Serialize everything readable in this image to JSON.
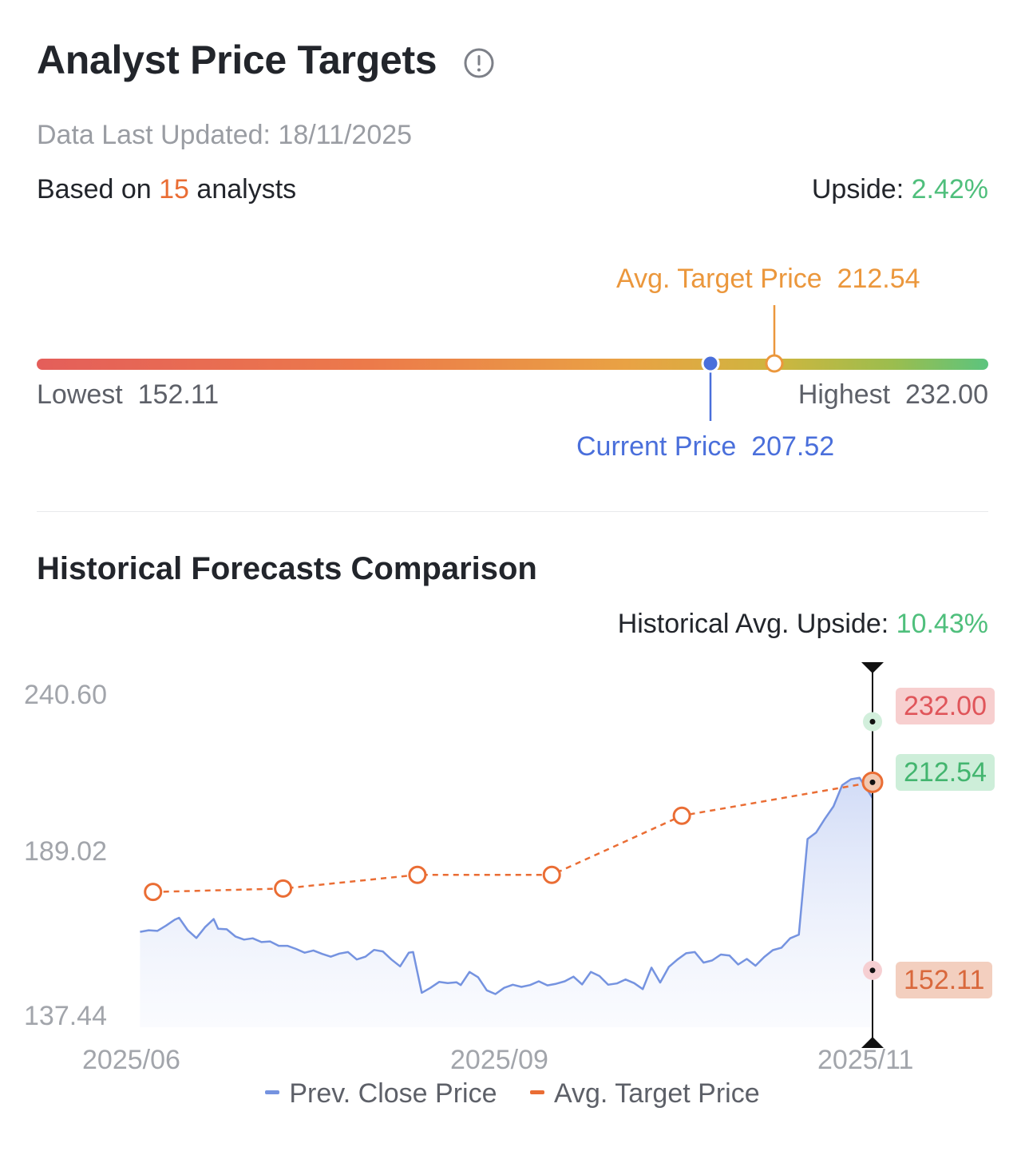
{
  "header": {
    "title": "Analyst Price Targets",
    "updated": "Data Last Updated: 18/11/2025",
    "based_prefix": "Based on",
    "analyst_count": "15",
    "based_suffix": "analysts",
    "upside_label": "Upside:",
    "upside_value": "2.42%"
  },
  "range": {
    "avg_label": "Avg. Target Price",
    "avg_value": "212.54",
    "current_label": "Current Price",
    "current_value": "207.52",
    "lowest_label": "Lowest",
    "lowest_value": "152.11",
    "highest_label": "Highest",
    "highest_value": "232.00"
  },
  "history": {
    "title": "Historical Forecasts Comparison",
    "avg_upside_label": "Historical Avg. Upside:",
    "avg_upside_value": "10.43%",
    "tag_high": "232.00",
    "tag_avg": "212.54",
    "tag_low": "152.11"
  },
  "legend": {
    "close": "Prev. Close Price",
    "target": "Avg. Target Price"
  },
  "colors": {
    "close": "#7593e0",
    "target": "#ea6d34",
    "high_tag": "#e0555a",
    "avg_tag": "#43b56f",
    "low_tag": "#d9683c"
  },
  "chart_data": {
    "type": "line",
    "y_ticks": [
      "240.60",
      "189.02",
      "137.44"
    ],
    "x_ticks": [
      "2025/06",
      "2025/09",
      "2025/11"
    ],
    "ylim": [
      137.44,
      240.6
    ],
    "series": [
      {
        "name": "Prev. Close Price",
        "points": [
          [
            "2025-06-02",
            164.5
          ],
          [
            "2025-06-04",
            165.0
          ],
          [
            "2025-06-06",
            164.8
          ],
          [
            "2025-06-08",
            166.5
          ],
          [
            "2025-06-10",
            168.4
          ],
          [
            "2025-06-11",
            169.0
          ],
          [
            "2025-06-13",
            165.0
          ],
          [
            "2025-06-15",
            162.5
          ],
          [
            "2025-06-17",
            166.0
          ],
          [
            "2025-06-19",
            168.6
          ],
          [
            "2025-06-20",
            165.5
          ],
          [
            "2025-06-22",
            165.3
          ],
          [
            "2025-06-24",
            163.0
          ],
          [
            "2025-06-26",
            162.0
          ],
          [
            "2025-06-28",
            162.4
          ],
          [
            "2025-06-30",
            161.2
          ],
          [
            "2025-07-02",
            161.4
          ],
          [
            "2025-07-04",
            160.0
          ],
          [
            "2025-07-06",
            160.0
          ],
          [
            "2025-07-08",
            159.0
          ],
          [
            "2025-07-10",
            157.8
          ],
          [
            "2025-07-12",
            158.5
          ],
          [
            "2025-07-14",
            157.4
          ],
          [
            "2025-07-16",
            156.5
          ],
          [
            "2025-07-18",
            157.5
          ],
          [
            "2025-07-20",
            158.0
          ],
          [
            "2025-07-22",
            155.6
          ],
          [
            "2025-07-24",
            156.5
          ],
          [
            "2025-07-26",
            158.7
          ],
          [
            "2025-07-28",
            158.2
          ],
          [
            "2025-07-30",
            155.6
          ],
          [
            "2025-08-01",
            153.4
          ],
          [
            "2025-08-03",
            157.8
          ],
          [
            "2025-08-04",
            158.0
          ],
          [
            "2025-08-06",
            144.9
          ],
          [
            "2025-08-08",
            146.5
          ],
          [
            "2025-08-10",
            148.4
          ],
          [
            "2025-08-12",
            148.0
          ],
          [
            "2025-08-14",
            148.3
          ],
          [
            "2025-08-15",
            147.4
          ],
          [
            "2025-08-17",
            151.6
          ],
          [
            "2025-08-19",
            149.9
          ],
          [
            "2025-08-21",
            145.7
          ],
          [
            "2025-08-23",
            144.5
          ],
          [
            "2025-08-25",
            146.5
          ],
          [
            "2025-08-27",
            147.5
          ],
          [
            "2025-08-29",
            146.8
          ],
          [
            "2025-08-31",
            147.4
          ],
          [
            "2025-09-02",
            148.6
          ],
          [
            "2025-09-04",
            147.3
          ],
          [
            "2025-09-06",
            147.8
          ],
          [
            "2025-09-08",
            148.6
          ],
          [
            "2025-09-10",
            150.1
          ],
          [
            "2025-09-12",
            147.6
          ],
          [
            "2025-09-14",
            151.6
          ],
          [
            "2025-09-16",
            150.3
          ],
          [
            "2025-09-18",
            147.5
          ],
          [
            "2025-09-20",
            147.9
          ],
          [
            "2025-09-22",
            149.2
          ],
          [
            "2025-09-24",
            148.0
          ],
          [
            "2025-09-26",
            146.1
          ],
          [
            "2025-09-28",
            153.0
          ],
          [
            "2025-09-30",
            148.2
          ],
          [
            "2025-10-02",
            153.2
          ],
          [
            "2025-10-04",
            155.6
          ],
          [
            "2025-10-06",
            157.6
          ],
          [
            "2025-10-08",
            158.0
          ],
          [
            "2025-10-10",
            154.6
          ],
          [
            "2025-10-12",
            155.3
          ],
          [
            "2025-10-14",
            157.2
          ],
          [
            "2025-10-16",
            156.9
          ],
          [
            "2025-10-18",
            154.0
          ],
          [
            "2025-10-20",
            155.8
          ],
          [
            "2025-10-22",
            153.6
          ],
          [
            "2025-10-24",
            156.4
          ],
          [
            "2025-10-26",
            158.6
          ],
          [
            "2025-10-28",
            159.4
          ],
          [
            "2025-10-30",
            162.4
          ],
          [
            "2025-11-01",
            163.6
          ],
          [
            "2025-11-03",
            194.3
          ],
          [
            "2025-11-05",
            196.4
          ],
          [
            "2025-11-07",
            200.8
          ],
          [
            "2025-11-09",
            204.8
          ],
          [
            "2025-11-11",
            211.6
          ],
          [
            "2025-11-13",
            213.5
          ],
          [
            "2025-11-15",
            214.0
          ],
          [
            "2025-11-18",
            207.5
          ]
        ]
      },
      {
        "name": "Avg. Target Price",
        "points": [
          [
            "2025-06-05",
            177.3
          ],
          [
            "2025-07-05",
            178.4
          ],
          [
            "2025-08-05",
            182.8
          ],
          [
            "2025-09-05",
            182.8
          ],
          [
            "2025-10-05",
            201.8
          ],
          [
            "2025-11-18",
            212.54
          ]
        ]
      }
    ],
    "markers": [
      {
        "date": "2025-11-18",
        "value": 232.0
      },
      {
        "date": "2025-11-18",
        "value": 212.54
      },
      {
        "date": "2025-11-18",
        "value": 152.11
      }
    ]
  }
}
